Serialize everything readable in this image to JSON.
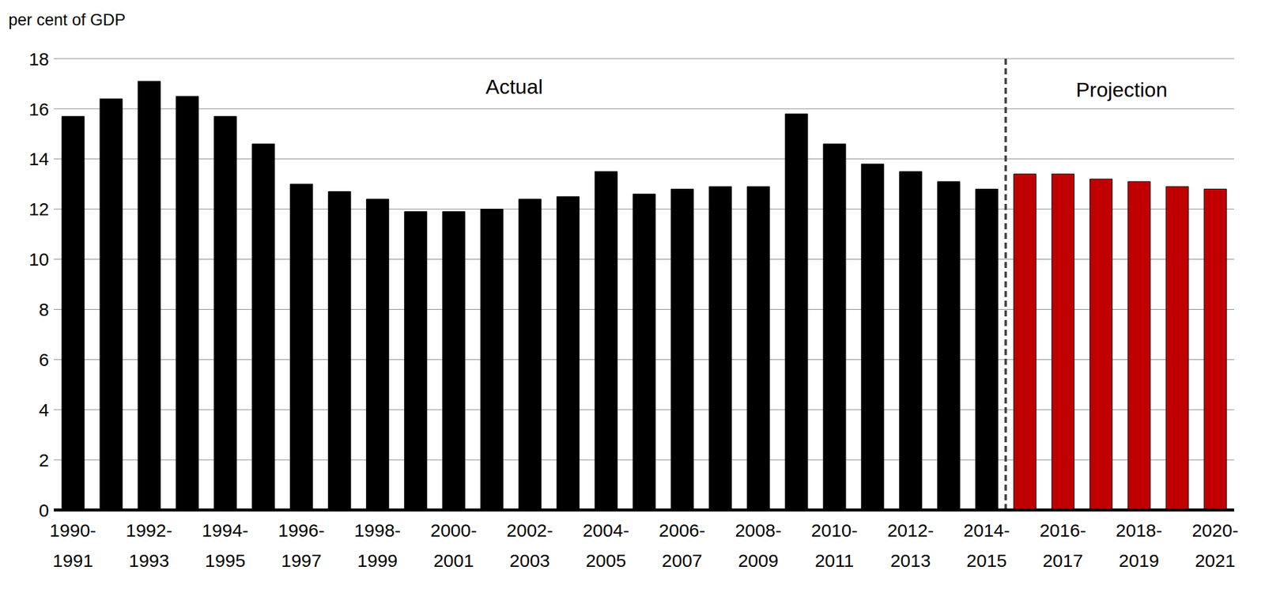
{
  "chart_data": {
    "type": "bar",
    "y_label": "per cent of GDP",
    "annotations": [
      "Actual",
      "Projection"
    ],
    "categories": [
      "1990-1991",
      null,
      "1992-1993",
      null,
      "1994-1995",
      null,
      "1996-1997",
      null,
      "1998-1999",
      null,
      "2000-2001",
      null,
      "2002-2003",
      null,
      "2004-2005",
      null,
      "2006-2007",
      null,
      "2008-2009",
      null,
      "2010-2011",
      null,
      "2012-2013",
      null,
      "2014-2015",
      null,
      "2016-2017",
      null,
      "2018-2019",
      null,
      "2020-2021"
    ],
    "values": [
      15.7,
      16.4,
      17.1,
      16.5,
      15.7,
      14.6,
      13.0,
      12.7,
      12.4,
      11.9,
      11.9,
      12.0,
      12.4,
      12.5,
      13.5,
      12.6,
      12.8,
      12.9,
      12.9,
      15.8,
      14.6,
      13.8,
      13.5,
      13.1,
      12.8,
      13.4,
      13.4,
      13.2,
      13.1,
      12.9,
      12.8
    ],
    "colors": [
      "#000000",
      "#000000",
      "#000000",
      "#000000",
      "#000000",
      "#000000",
      "#000000",
      "#000000",
      "#000000",
      "#000000",
      "#000000",
      "#000000",
      "#000000",
      "#000000",
      "#000000",
      "#000000",
      "#000000",
      "#000000",
      "#000000",
      "#000000",
      "#000000",
      "#000000",
      "#000000",
      "#000000",
      "#000000",
      "#c00000",
      "#c00000",
      "#c00000",
      "#c00000",
      "#c00000",
      "#c00000"
    ],
    "ylim": [
      0,
      18
    ],
    "yticks": [
      0,
      2,
      4,
      6,
      8,
      10,
      12,
      14,
      16,
      18
    ],
    "grid": true
  }
}
